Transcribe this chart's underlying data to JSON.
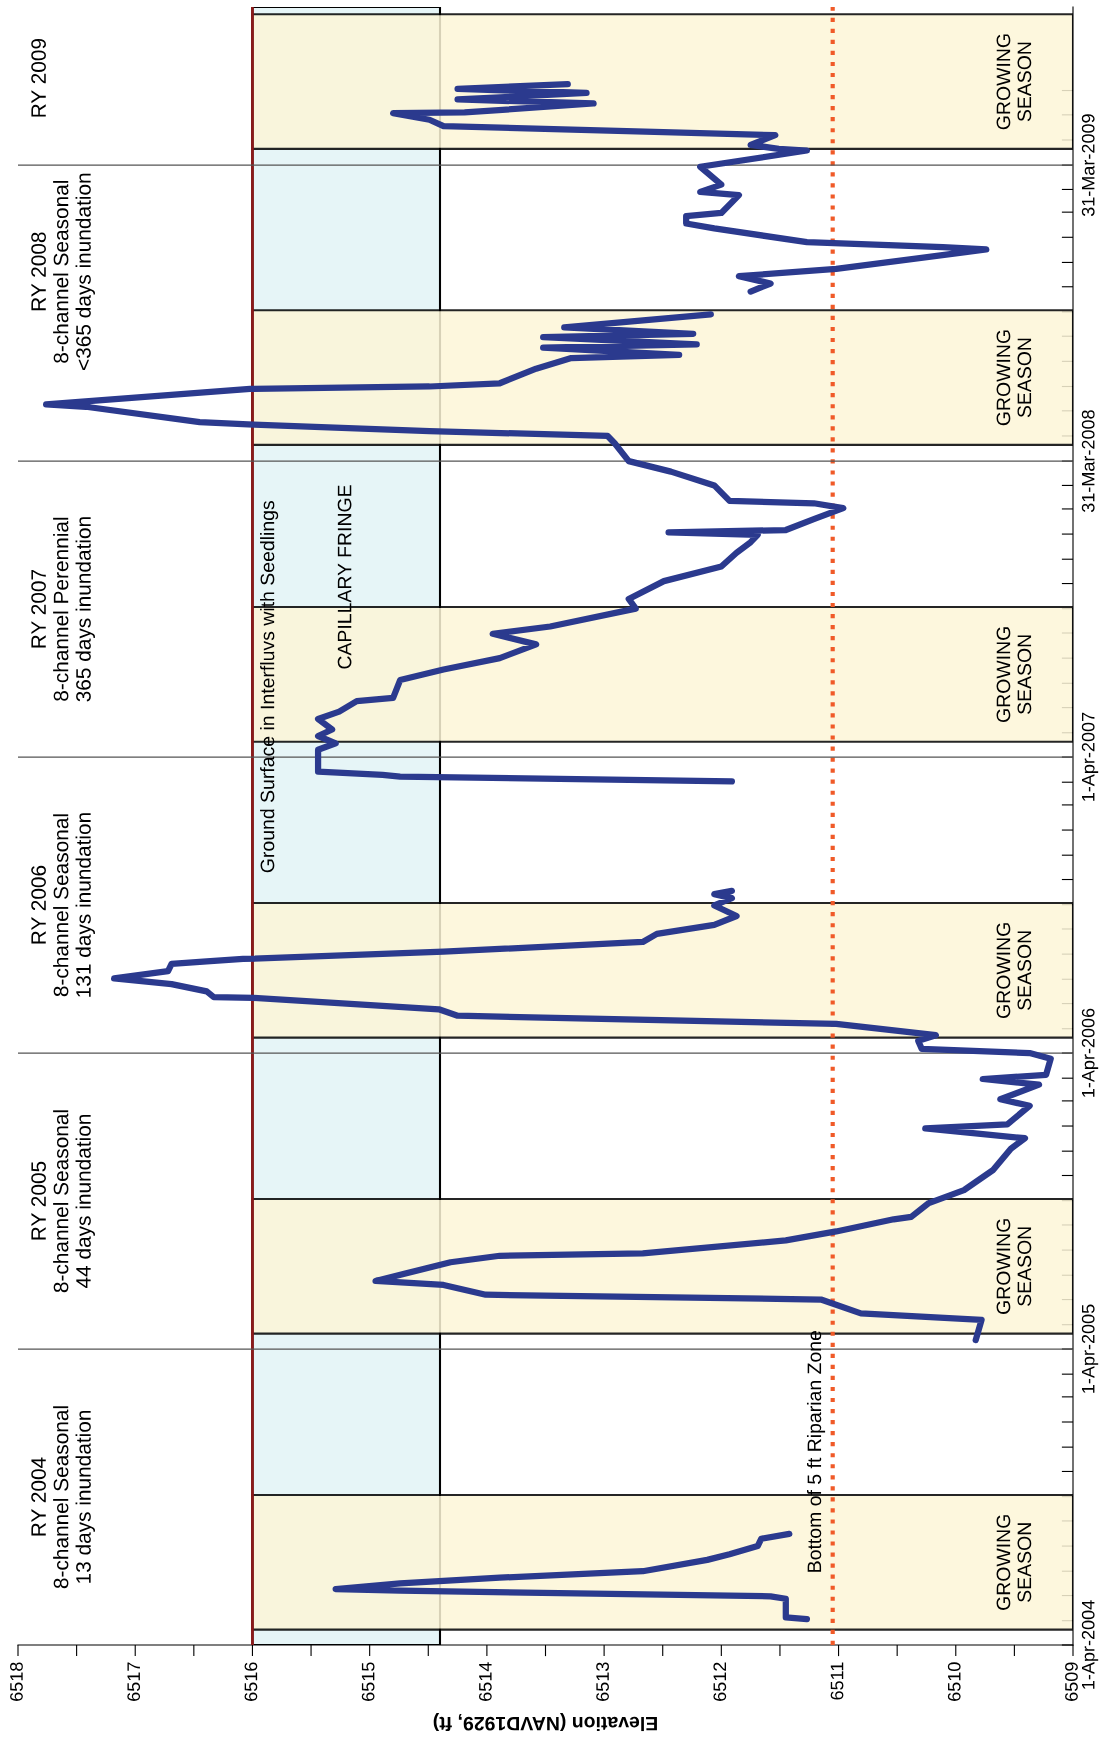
{
  "chart_data": {
    "type": "line",
    "orientation": "horizontal",
    "xlabel": "Elevation (NAVD1929, ft)",
    "ylim": [
      "2004-04-01",
      "2009-10-12"
    ],
    "yticks": [
      {
        "value": "2004-04-01",
        "label": "1-Apr-2004"
      },
      {
        "value": "2005-04-01",
        "label": "1-Apr-2005"
      },
      {
        "value": "2006-04-01",
        "label": "1-Apr-2006"
      },
      {
        "value": "2007-04-01",
        "label": "1-Apr-2007"
      },
      {
        "value": "2008-03-31",
        "label": "31-Mar-2008"
      },
      {
        "value": "2009-03-31",
        "label": "31-Mar-2009"
      },
      {
        "value": "2004-05-01",
        "label": null
      },
      {
        "value": "2004-06-01",
        "label": null
      },
      {
        "value": "2004-07-01",
        "label": null
      },
      {
        "value": "2004-08-01",
        "label": null
      },
      {
        "value": "2004-09-01",
        "label": null
      },
      {
        "value": "2004-10-01",
        "label": null
      },
      {
        "value": "2004-11-01",
        "label": null
      },
      {
        "value": "2004-12-01",
        "label": null
      },
      {
        "value": "2005-01-01",
        "label": null
      },
      {
        "value": "2005-02-01",
        "label": null
      },
      {
        "value": "2005-03-01",
        "label": null
      },
      {
        "value": "2005-05-01",
        "label": null
      },
      {
        "value": "2005-06-01",
        "label": null
      },
      {
        "value": "2005-07-01",
        "label": null
      },
      {
        "value": "2005-08-01",
        "label": null
      },
      {
        "value": "2005-09-01",
        "label": null
      },
      {
        "value": "2005-10-01",
        "label": null
      },
      {
        "value": "2005-11-01",
        "label": null
      },
      {
        "value": "2005-12-01",
        "label": null
      },
      {
        "value": "2006-01-01",
        "label": null
      },
      {
        "value": "2006-02-01",
        "label": null
      },
      {
        "value": "2006-03-01",
        "label": null
      },
      {
        "value": "2006-05-01",
        "label": null
      },
      {
        "value": "2006-06-01",
        "label": null
      },
      {
        "value": "2006-07-01",
        "label": null
      },
      {
        "value": "2006-08-01",
        "label": null
      },
      {
        "value": "2006-09-01",
        "label": null
      },
      {
        "value": "2006-10-01",
        "label": null
      },
      {
        "value": "2006-11-01",
        "label": null
      },
      {
        "value": "2006-12-01",
        "label": null
      },
      {
        "value": "2007-01-01",
        "label": null
      },
      {
        "value": "2007-02-01",
        "label": null
      },
      {
        "value": "2007-03-01",
        "label": null
      },
      {
        "value": "2007-05-01",
        "label": null
      },
      {
        "value": "2007-06-01",
        "label": null
      },
      {
        "value": "2007-07-01",
        "label": null
      },
      {
        "value": "2007-08-01",
        "label": null
      },
      {
        "value": "2007-09-01",
        "label": null
      },
      {
        "value": "2007-10-01",
        "label": null
      },
      {
        "value": "2007-11-01",
        "label": null
      },
      {
        "value": "2007-12-01",
        "label": null
      },
      {
        "value": "2008-01-01",
        "label": null
      },
      {
        "value": "2008-02-01",
        "label": null
      },
      {
        "value": "2008-03-01",
        "label": null
      },
      {
        "value": "2008-05-01",
        "label": null
      },
      {
        "value": "2008-06-01",
        "label": null
      },
      {
        "value": "2008-07-01",
        "label": null
      },
      {
        "value": "2008-08-01",
        "label": null
      },
      {
        "value": "2008-09-01",
        "label": null
      },
      {
        "value": "2008-10-01",
        "label": null
      },
      {
        "value": "2008-11-01",
        "label": null
      },
      {
        "value": "2008-12-01",
        "label": null
      },
      {
        "value": "2009-01-01",
        "label": null
      },
      {
        "value": "2009-02-01",
        "label": null
      },
      {
        "value": "2009-03-01",
        "label": null
      },
      {
        "value": "2009-05-01",
        "label": null
      },
      {
        "value": "2009-06-01",
        "label": null
      },
      {
        "value": "2009-07-01",
        "label": null
      }
    ],
    "xlim": [
      6518,
      6509
    ],
    "xticks": [
      6509,
      {
        "value": 6509.5,
        "label": null
      },
      6510,
      {
        "value": 6510.5,
        "label": null
      },
      6511,
      {
        "value": 6511.5,
        "label": null
      },
      6512,
      {
        "value": 6512.5,
        "label": null
      },
      6513,
      {
        "value": 6513.5,
        "label": null
      },
      6514,
      {
        "value": 6514.5,
        "label": null
      },
      6515,
      {
        "value": 6515.5,
        "label": null
      },
      6516,
      {
        "value": 6516.5,
        "label": null
      },
      6517,
      {
        "value": 6517.5,
        "label": null
      },
      6518
    ],
    "grid": false,
    "marker": "none",
    "line_style": "solid",
    "series": [
      {
        "color": "#2b3a8e",
        "x": [
          "2004-05-03",
          "2004-05-05",
          "2004-05-28",
          "2004-05-31",
          "2004-06-07",
          "2004-06-09",
          "2004-06-16",
          "2004-06-23",
          "2004-07-01",
          "2004-07-15",
          "2004-07-22",
          "2004-08-01",
          "2004-08-10",
          "2004-08-16",
          "2004-12-01",
          "2005-04-12",
          "2005-05-07",
          "2005-05-15",
          "2005-06-01",
          "2005-06-07",
          "2005-06-19",
          "2005-06-24",
          "2005-07-17",
          "2005-07-25",
          "2005-07-28",
          "2005-08-13",
          "2005-08-24",
          "2005-09-08",
          "2005-09-11",
          "2005-09-28",
          "2005-10-14",
          "2005-11-08",
          "2005-12-04",
          "2005-12-17",
          "2005-12-29",
          "2006-01-03",
          "2006-01-26",
          "2006-02-03",
          "2006-02-21",
          "2006-02-28",
          "2006-03-05",
          "2006-03-25",
          "2006-04-01",
          "2006-04-06",
          "2006-04-16",
          "2006-04-23",
          "2006-05-07",
          "2006-05-17",
          "2006-05-25",
          "2006-06-08",
          "2006-06-09",
          "2006-06-16",
          "2006-06-25",
          "2006-07-02",
          "2006-07-11",
          "2006-07-20",
          "2006-07-23",
          "2006-07-26",
          "2006-08-04",
          "2006-08-16",
          "2006-08-26",
          "2006-09-06",
          "2006-09-17",
          "2006-09-30",
          "2006-10-09",
          "2006-10-14",
          "2006-10-18",
          "2006-12-01",
          "2007-03-02",
          "2007-03-08",
          "2007-03-10",
          "2007-03-14",
          "2007-04-10",
          "2007-04-18",
          "2007-04-27",
          "2007-05-05",
          "2007-05-18",
          "2007-05-27",
          "2007-06-09",
          "2007-06-13",
          "2007-07-05",
          "2007-07-18",
          "2007-08-01",
          "2007-08-18",
          "2007-08-31",
          "2007-09-09",
          "2007-10-01",
          "2007-10-13",
          "2007-11-04",
          "2007-11-22",
          "2007-12-09",
          "2007-12-22",
          "2007-12-31",
          "2008-01-03",
          "2008-01-06",
          "2008-01-20",
          "2008-02-02",
          "2008-02-08",
          "2008-02-11",
          "2008-03-01",
          "2008-03-18",
          "2008-03-31",
          "2008-04-22",
          "2008-05-01",
          "2008-05-07",
          "2008-05-15",
          "2008-05-18",
          "2008-06-06",
          "2008-06-09",
          "2008-06-12",
          "2008-06-28",
          "2008-07-01",
          "2008-07-05",
          "2008-07-23",
          "2008-08-05",
          "2008-08-09",
          "2008-08-18",
          "2008-08-22",
          "2008-08-31",
          "2008-09-04",
          "2008-09-12",
          "2008-09-28",
          "2008-10-10",
          "2008-10-26",
          "2008-11-05",
          "2008-11-14",
          "2008-11-23",
          "2008-12-17",
          "2008-12-20",
          "2008-12-26",
          "2009-01-12",
          "2009-01-18",
          "2009-01-27",
          "2009-01-31",
          "2009-02-22",
          "2009-02-26",
          "2009-03-07",
          "2009-03-29",
          "2009-04-18",
          "2009-04-20",
          "2009-04-25",
          "2009-05-07",
          "2009-05-18",
          "2009-05-26",
          "2009-06-03",
          "2009-06-04",
          "2009-06-15",
          "2009-06-20",
          "2009-06-28",
          "2009-07-03",
          "2009-07-09"
        ],
        "values": [
          6511.27,
          6511.45,
          6511.45,
          6511.58,
          6514.74,
          6515.29,
          6514.74,
          6513.89,
          6512.67,
          6512.12,
          6511.93,
          6511.69,
          6511.66,
          6511.42,
          null,
          6509.83,
          6509.78,
          6510.81,
          6511.15,
          6514.01,
          6514.37,
          6514.95,
          6514.31,
          6513.89,
          6512.67,
          6511.45,
          6511.02,
          6510.53,
          6510.38,
          6510.23,
          6509.93,
          6509.68,
          6509.53,
          6509.41,
          6510.26,
          6509.56,
          6509.37,
          6509.62,
          6509.29,
          6509.77,
          6509.23,
          6509.19,
          6509.37,
          6510.29,
          6510.32,
          6510.17,
          6511.02,
          6514.25,
          6514.41,
          6515.99,
          6516.33,
          6516.39,
          6516.69,
          6517.18,
          6516.72,
          6516.69,
          6516.39,
          6516.08,
          6514.37,
          6512.67,
          6512.55,
          6512.06,
          6511.87,
          6512.06,
          6511.91,
          6512.06,
          6511.91,
          null,
          6511.91,
          6514.74,
          6514.89,
          6515.44,
          6515.44,
          6515.29,
          6515.44,
          6515.32,
          6515.44,
          6515.26,
          6515.11,
          6514.8,
          6514.74,
          6514.37,
          6513.89,
          6513.58,
          6513.95,
          6513.46,
          6512.73,
          6512.79,
          6512.49,
          6512.0,
          6511.87,
          6511.75,
          6511.69,
          6512.45,
          6511.45,
          6511.2,
          6510.96,
          6511.21,
          6511.93,
          6512.06,
          6512.43,
          6512.79,
          6512.91,
          6512.97,
          6514.49,
          6515.99,
          6516.45,
          6517.42,
          6517.76,
          6517.48,
          6516.02,
          6514.49,
          6513.89,
          6513.58,
          6513.28,
          6512.36,
          6513.52,
          6512.21,
          6513.52,
          6512.24,
          6513.34,
          6512.09,
          null,
          6511.75,
          6511.58,
          6511.85,
          6511.02,
          6509.74,
          6510.11,
          6511.27,
          6512.06,
          6512.3,
          6512.3,
          6512.0,
          6511.85,
          6512.18,
          6512.0,
          6512.18,
          6511.27,
          6511.51,
          6511.75,
          6511.54,
          6514.37,
          6514.49,
          6514.8,
          6514.19,
          6513.09,
          6514.25,
          6513.15,
          6514.25,
          6513.31
        ]
      }
    ],
    "ref_lines": [
      {
        "axis": "x",
        "value": 6516,
        "label": "Ground Surface in Interfluvs with Seedlings",
        "color": "#8b1a1a",
        "line_style": "solid"
      },
      {
        "axis": "x",
        "value": 6511.05,
        "label": "Bottom of 5 ft Riparian Zone",
        "color": "#f05a28",
        "line_style": "dotted"
      },
      {
        "axis": "y",
        "value": "2005-04-01",
        "color": "#555555",
        "line_style": "solid"
      },
      {
        "axis": "y",
        "value": "2006-04-01",
        "color": "#555555",
        "line_style": "solid"
      },
      {
        "axis": "y",
        "value": "2007-04-01",
        "color": "#555555",
        "line_style": "solid"
      },
      {
        "axis": "y",
        "value": "2008-03-31",
        "color": "#555555",
        "line_style": "solid"
      },
      {
        "axis": "y",
        "value": "2009-03-31",
        "color": "#555555",
        "line_style": "solid"
      }
    ],
    "bands": [
      {
        "axis": "x",
        "from": 6516,
        "to": 6514.4,
        "label": "CAPILLARY FRINGE",
        "color": "#e6f5f7"
      },
      {
        "axis": "y",
        "from": "2004-04-20",
        "to": "2004-10-03",
        "label": "GROWING\nSEASON",
        "color": "#fdf6d8"
      },
      {
        "axis": "y",
        "from": "2005-04-20",
        "to": "2005-10-03",
        "label": "GROWING\nSEASON",
        "color": "#fdf6d8"
      },
      {
        "axis": "y",
        "from": "2006-04-20",
        "to": "2006-10-03",
        "label": "GROWING\nSEASON",
        "color": "#fdf6d8"
      },
      {
        "axis": "y",
        "from": "2007-04-20",
        "to": "2007-10-03",
        "label": "GROWING\nSEASON",
        "color": "#fdf6d8"
      },
      {
        "axis": "y",
        "from": "2008-04-20",
        "to": "2008-10-03",
        "label": "GROWING\nSEASON",
        "color": "#fdf6d8"
      },
      {
        "axis": "y",
        "from": "2009-04-20",
        "to": "2009-10-03",
        "label": "GROWING\nSEASON",
        "color": "#fdf6d8"
      }
    ],
    "annotations": [
      "RY 2004\n8-channel Seasonal\n13 days inundation",
      "RY 2005\n8-channel Seasonal\n44 days inundation",
      "RY 2006\n8-channel Seasonal\n131 days inundation",
      "RY 2007\n8-channel Perennial\n365 days inundation",
      "RY 2008\n8-channel Seasonal\n<365 days inundation",
      "RY 2009"
    ]
  }
}
